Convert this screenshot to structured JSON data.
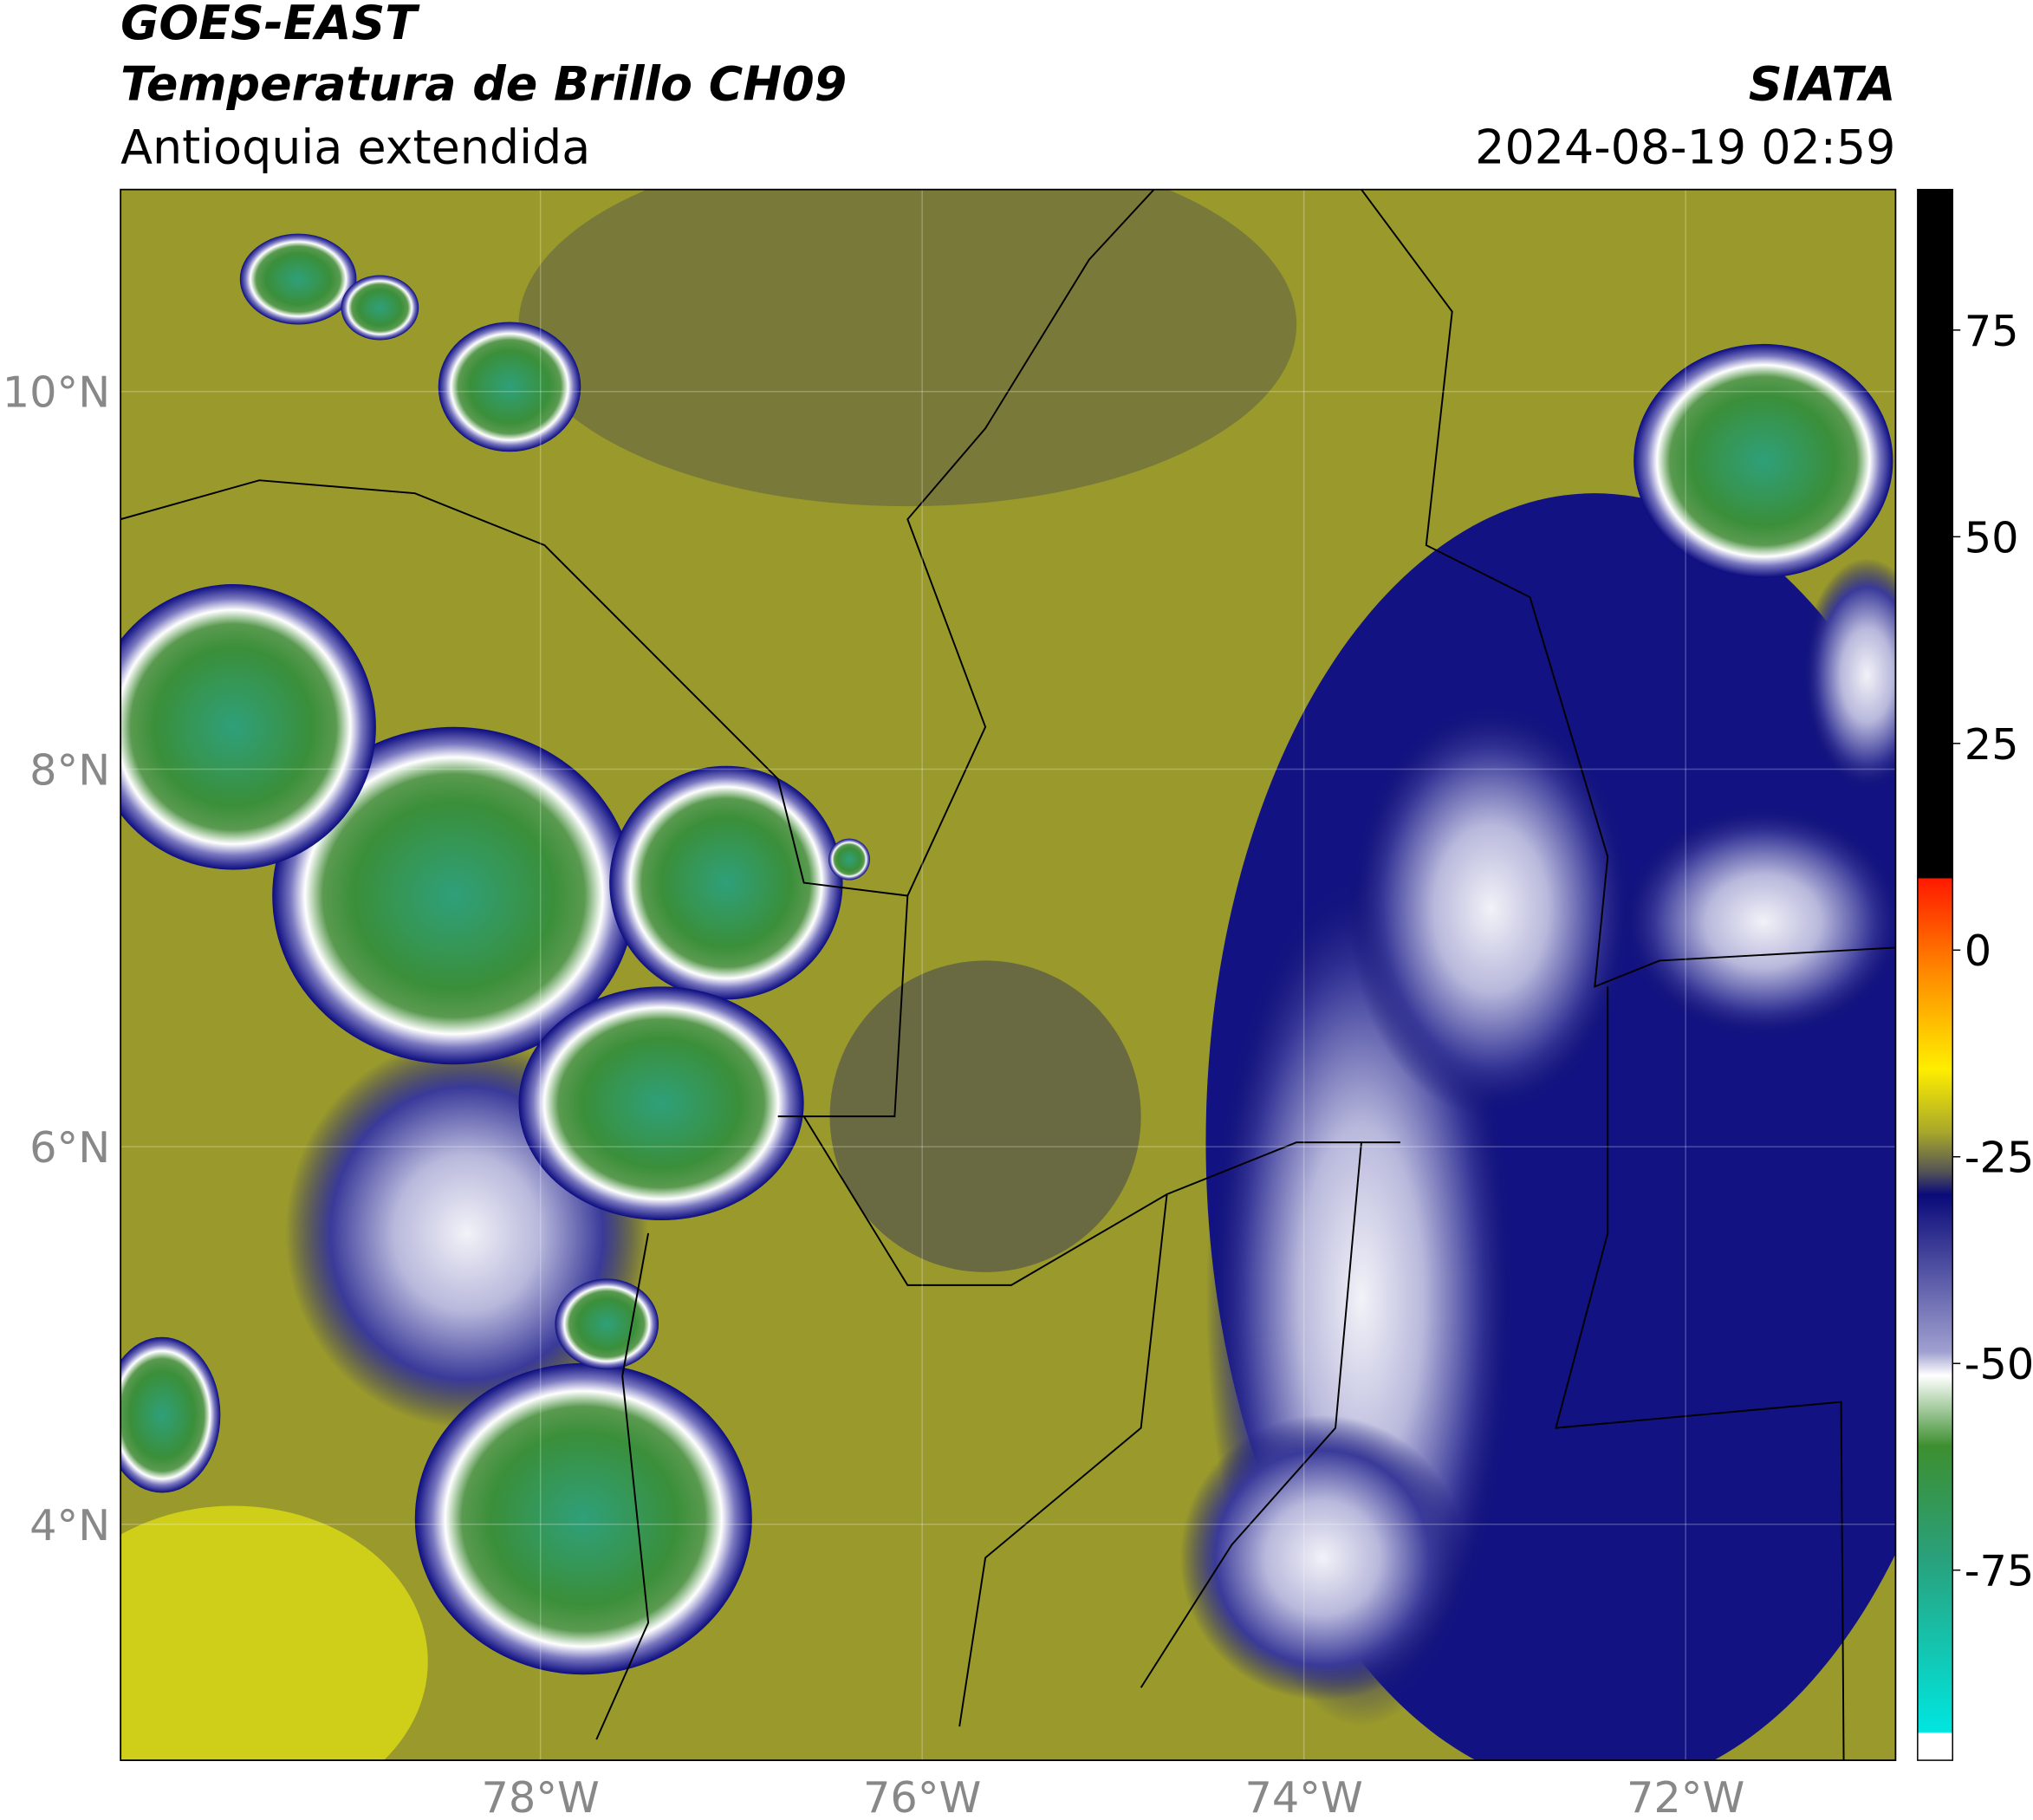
{
  "header": {
    "satellite": "GOES-EAST",
    "product": "Temperatura de Brillo CH09",
    "region": "Antioquia extendida",
    "source": "SIATA",
    "datetime": "2024-08-19 02:59"
  },
  "map": {
    "xlim": [
      -80.2,
      -70.9
    ],
    "ylim": [
      2.75,
      11.07
    ],
    "xticks": [
      {
        "value": -78,
        "label": "78°W"
      },
      {
        "value": -76,
        "label": "76°W"
      },
      {
        "value": -74,
        "label": "74°W"
      },
      {
        "value": -72,
        "label": "72°W"
      }
    ],
    "yticks": [
      {
        "value": 4,
        "label": "4°N"
      },
      {
        "value": 6,
        "label": "6°N"
      },
      {
        "value": 8,
        "label": "8°N"
      },
      {
        "value": 10,
        "label": "10°N"
      }
    ],
    "grid": true
  },
  "colorbar": {
    "lim": [
      -98,
      92
    ],
    "ticks": [
      75,
      50,
      25,
      0,
      -25,
      -50,
      -75
    ]
  }
}
